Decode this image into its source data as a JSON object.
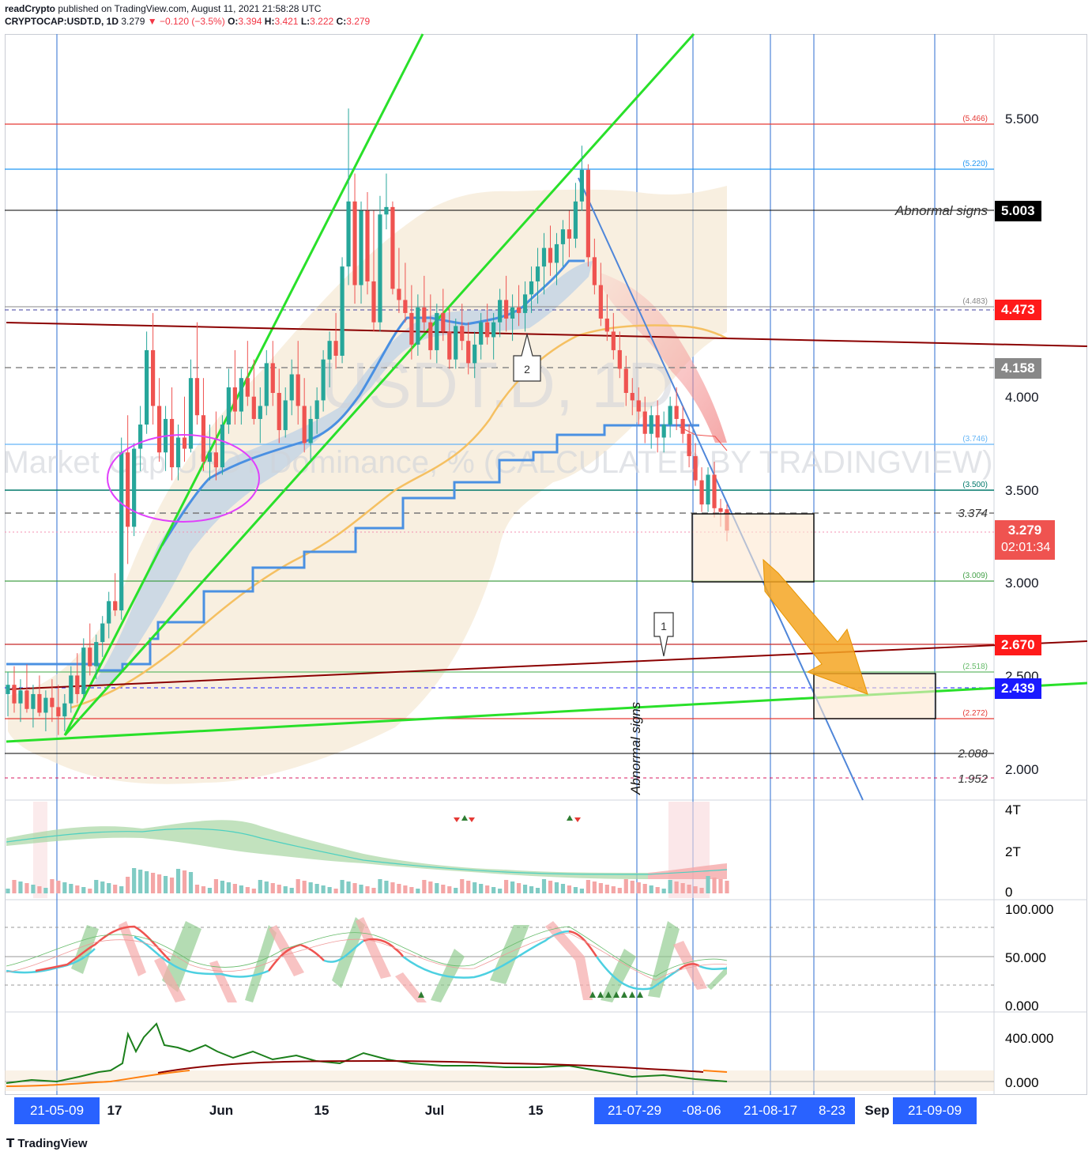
{
  "header": {
    "publisher": "readCrypto",
    "published_text": "published on TradingView.com, August 11, 2021 21:58:28 UTC",
    "symbol": "CRYPTOCAP:USDT.D, 1D",
    "last": "3.279",
    "change": "−0.120 (−3.5%)",
    "ohlc": {
      "o": "3.394",
      "h": "3.421",
      "l": "3.222",
      "c": "3.279"
    }
  },
  "watermark": {
    "symbol": "USDT.D, 1D",
    "description": "Market Cap USDT Dominance, % (CALCULATED BY TRADINGVIEW)"
  },
  "brand": "TradingView",
  "colors": {
    "up": "#26a69a",
    "down": "#ef5350",
    "trendline_green": "#29e02a",
    "trendline_darkred": "#8b0000",
    "trendline_blue": "#4f86d9",
    "band_fill": "#f5e6d0",
    "ma_orange": "#f5c062",
    "stepline_blue": "#4a90e2",
    "arrow_orange": "#f5a623"
  },
  "price_axis": {
    "ticks": [
      "5.500",
      "5.003",
      "4.000",
      "3.500",
      "3.000",
      "2.500",
      "2.000"
    ],
    "badges": [
      {
        "value": "5.003",
        "bg": "#000000",
        "fg": "#ffffff"
      },
      {
        "value": "4.473",
        "bg": "#ff1a1a",
        "fg": "#ffffff"
      },
      {
        "value": "4.158",
        "bg": "#888888",
        "fg": "#ffffff"
      },
      {
        "value": "3.279",
        "bg": "#ef5350",
        "fg": "#ffffff",
        "sub": "02:01:34"
      },
      {
        "value": "2.670",
        "bg": "#ff1a1a",
        "fg": "#ffffff"
      },
      {
        "value": "2.439",
        "bg": "#1a1aff",
        "fg": "#ffffff"
      }
    ],
    "levels": [
      {
        "label": "(5.466)",
        "color": "#e53935"
      },
      {
        "label": "(5.220)",
        "color": "#2196f3"
      },
      {
        "label": "(4.483)",
        "color": "#888888"
      },
      {
        "label": "(3.746)",
        "color": "#64b5f6"
      },
      {
        "label": "(3.500)",
        "color": "#00796b"
      },
      {
        "label": "(3.009)",
        "color": "#43a047"
      },
      {
        "label": "(2.518)",
        "color": "#66bb6a"
      },
      {
        "label": "(2.272)",
        "color": "#e53935"
      }
    ],
    "italic_levels": [
      "3.374",
      "2.088",
      "1.952"
    ]
  },
  "annotations": {
    "abnormal_horizontal": "Abnormal signs",
    "abnormal_vertical": "Abnormal signs",
    "callout_1": "1",
    "callout_2": "2"
  },
  "volume_axis": [
    "4T",
    "2T",
    "0"
  ],
  "osc_axis": [
    "100.000",
    "50.000",
    "0.000"
  ],
  "osc2_axis": [
    "400.000",
    "0.000"
  ],
  "time_axis": [
    {
      "label": "21-05-09",
      "highlight": true
    },
    {
      "label": "17",
      "highlight": false
    },
    {
      "label": "Jun",
      "highlight": false
    },
    {
      "label": "15",
      "highlight": false
    },
    {
      "label": "Jul",
      "highlight": false
    },
    {
      "label": "15",
      "highlight": false
    },
    {
      "label": "21-07-29",
      "highlight": true
    },
    {
      "label": "-08-06",
      "highlight": true
    },
    {
      "label": "21-08-17",
      "highlight": true
    },
    {
      "label": "8-23",
      "highlight": true
    },
    {
      "label": "Sep",
      "highlight": false
    },
    {
      "label": "21-09-09",
      "highlight": true
    }
  ],
  "chart_data": {
    "type": "candlestick",
    "title": "CRYPTOCAP:USDT.D, 1D",
    "ylabel": "",
    "ylim": [
      1.85,
      5.85
    ],
    "x_range": [
      "2021-05-01",
      "2021-09-15"
    ],
    "candles": [
      {
        "o": 2.4,
        "h": 2.52,
        "l": 2.28,
        "c": 2.45
      },
      {
        "o": 2.45,
        "h": 2.55,
        "l": 2.3,
        "c": 2.35
      },
      {
        "o": 2.35,
        "h": 2.48,
        "l": 2.25,
        "c": 2.42
      },
      {
        "o": 2.42,
        "h": 2.56,
        "l": 2.3,
        "c": 2.32
      },
      {
        "o": 2.32,
        "h": 2.45,
        "l": 2.22,
        "c": 2.4
      },
      {
        "o": 2.4,
        "h": 2.5,
        "l": 2.28,
        "c": 2.3
      },
      {
        "o": 2.3,
        "h": 2.42,
        "l": 2.2,
        "c": 2.38
      },
      {
        "o": 2.38,
        "h": 2.48,
        "l": 2.25,
        "c": 2.33
      },
      {
        "o": 2.33,
        "h": 2.45,
        "l": 2.18,
        "c": 2.28
      },
      {
        "o": 2.28,
        "h": 2.4,
        "l": 2.2,
        "c": 2.35
      },
      {
        "o": 2.35,
        "h": 2.55,
        "l": 2.3,
        "c": 2.5
      },
      {
        "o": 2.5,
        "h": 2.62,
        "l": 2.35,
        "c": 2.4
      },
      {
        "o": 2.4,
        "h": 2.7,
        "l": 2.38,
        "c": 2.65
      },
      {
        "o": 2.65,
        "h": 2.78,
        "l": 2.5,
        "c": 2.55
      },
      {
        "o": 2.55,
        "h": 2.72,
        "l": 2.48,
        "c": 2.68
      },
      {
        "o": 2.68,
        "h": 2.82,
        "l": 2.6,
        "c": 2.78
      },
      {
        "o": 2.78,
        "h": 2.95,
        "l": 2.7,
        "c": 2.9
      },
      {
        "o": 2.9,
        "h": 3.05,
        "l": 2.82,
        "c": 2.85
      },
      {
        "o": 2.85,
        "h": 3.78,
        "l": 2.8,
        "c": 3.7
      },
      {
        "o": 3.7,
        "h": 3.9,
        "l": 3.1,
        "c": 3.3
      },
      {
        "o": 3.3,
        "h": 3.75,
        "l": 3.25,
        "c": 3.72
      },
      {
        "o": 3.72,
        "h": 3.95,
        "l": 3.6,
        "c": 3.85
      },
      {
        "o": 3.85,
        "h": 4.35,
        "l": 3.8,
        "c": 4.25
      },
      {
        "o": 4.25,
        "h": 4.45,
        "l": 3.85,
        "c": 3.95
      },
      {
        "o": 3.95,
        "h": 4.1,
        "l": 3.65,
        "c": 3.7
      },
      {
        "o": 3.7,
        "h": 3.95,
        "l": 3.6,
        "c": 3.88
      },
      {
        "o": 3.88,
        "h": 4.05,
        "l": 3.55,
        "c": 3.62
      },
      {
        "o": 3.62,
        "h": 3.85,
        "l": 3.55,
        "c": 3.78
      },
      {
        "o": 3.78,
        "h": 4.0,
        "l": 3.65,
        "c": 3.72
      },
      {
        "o": 3.72,
        "h": 4.2,
        "l": 3.7,
        "c": 4.1
      },
      {
        "o": 4.1,
        "h": 4.4,
        "l": 3.85,
        "c": 3.9
      },
      {
        "o": 3.9,
        "h": 4.1,
        "l": 3.6,
        "c": 3.65
      },
      {
        "o": 3.65,
        "h": 3.85,
        "l": 3.55,
        "c": 3.7
      },
      {
        "o": 3.7,
        "h": 3.92,
        "l": 3.55,
        "c": 3.62
      },
      {
        "o": 3.62,
        "h": 3.9,
        "l": 3.58,
        "c": 3.85
      },
      {
        "o": 3.85,
        "h": 4.15,
        "l": 3.8,
        "c": 4.05
      },
      {
        "o": 4.05,
        "h": 4.25,
        "l": 3.85,
        "c": 3.92
      },
      {
        "o": 3.92,
        "h": 4.15,
        "l": 3.85,
        "c": 4.1
      },
      {
        "o": 4.1,
        "h": 4.3,
        "l": 3.95,
        "c": 4.0
      },
      {
        "o": 4.0,
        "h": 4.2,
        "l": 3.85,
        "c": 3.88
      },
      {
        "o": 3.88,
        "h": 4.05,
        "l": 3.75,
        "c": 3.95
      },
      {
        "o": 3.95,
        "h": 4.25,
        "l": 3.9,
        "c": 4.18
      },
      {
        "o": 4.18,
        "h": 4.3,
        "l": 3.95,
        "c": 4.02
      },
      {
        "o": 4.02,
        "h": 4.15,
        "l": 3.75,
        "c": 3.82
      },
      {
        "o": 3.82,
        "h": 4.05,
        "l": 3.78,
        "c": 3.98
      },
      {
        "o": 3.98,
        "h": 4.2,
        "l": 3.9,
        "c": 4.12
      },
      {
        "o": 4.12,
        "h": 4.3,
        "l": 3.85,
        "c": 3.95
      },
      {
        "o": 3.95,
        "h": 4.1,
        "l": 3.7,
        "c": 3.75
      },
      {
        "o": 3.75,
        "h": 3.95,
        "l": 3.65,
        "c": 3.88
      },
      {
        "o": 3.88,
        "h": 4.05,
        "l": 3.8,
        "c": 3.98
      },
      {
        "o": 3.98,
        "h": 4.25,
        "l": 3.92,
        "c": 4.2
      },
      {
        "o": 4.2,
        "h": 4.35,
        "l": 4.05,
        "c": 4.3
      },
      {
        "o": 4.3,
        "h": 4.45,
        "l": 4.15,
        "c": 4.22
      },
      {
        "o": 4.22,
        "h": 4.75,
        "l": 4.18,
        "c": 4.7
      },
      {
        "o": 4.7,
        "h": 5.55,
        "l": 4.6,
        "c": 5.05
      },
      {
        "o": 5.05,
        "h": 5.2,
        "l": 4.5,
        "c": 4.6
      },
      {
        "o": 4.6,
        "h": 5.05,
        "l": 4.5,
        "c": 5.0
      },
      {
        "o": 5.0,
        "h": 5.1,
        "l": 4.55,
        "c": 4.62
      },
      {
        "o": 4.62,
        "h": 5.0,
        "l": 4.35,
        "c": 4.4
      },
      {
        "o": 4.4,
        "h": 5.08,
        "l": 4.35,
        "c": 4.98
      },
      {
        "o": 4.98,
        "h": 5.2,
        "l": 4.9,
        "c": 5.02
      },
      {
        "o": 5.02,
        "h": 5.05,
        "l": 4.55,
        "c": 4.58
      },
      {
        "o": 4.58,
        "h": 4.8,
        "l": 4.45,
        "c": 4.52
      },
      {
        "o": 4.52,
        "h": 4.72,
        "l": 4.4,
        "c": 4.45
      },
      {
        "o": 4.45,
        "h": 4.6,
        "l": 4.2,
        "c": 4.28
      },
      {
        "o": 4.28,
        "h": 4.55,
        "l": 4.22,
        "c": 4.48
      },
      {
        "o": 4.48,
        "h": 4.65,
        "l": 4.35,
        "c": 4.4
      },
      {
        "o": 4.4,
        "h": 4.55,
        "l": 4.2,
        "c": 4.25
      },
      {
        "o": 4.25,
        "h": 4.5,
        "l": 4.18,
        "c": 4.45
      },
      {
        "o": 4.45,
        "h": 4.58,
        "l": 4.3,
        "c": 4.35
      },
      {
        "o": 4.35,
        "h": 4.48,
        "l": 4.15,
        "c": 4.2
      },
      {
        "o": 4.2,
        "h": 4.42,
        "l": 4.15,
        "c": 4.38
      },
      {
        "o": 4.38,
        "h": 4.5,
        "l": 4.25,
        "c": 4.3
      },
      {
        "o": 4.3,
        "h": 4.4,
        "l": 4.12,
        "c": 4.18
      },
      {
        "o": 4.18,
        "h": 4.35,
        "l": 4.1,
        "c": 4.28
      },
      {
        "o": 4.28,
        "h": 4.45,
        "l": 4.2,
        "c": 4.4
      },
      {
        "o": 4.4,
        "h": 4.5,
        "l": 4.28,
        "c": 4.32
      },
      {
        "o": 4.32,
        "h": 4.45,
        "l": 4.2,
        "c": 4.4
      },
      {
        "o": 4.4,
        "h": 4.58,
        "l": 4.32,
        "c": 4.52
      },
      {
        "o": 4.52,
        "h": 4.65,
        "l": 4.35,
        "c": 4.42
      },
      {
        "o": 4.42,
        "h": 4.55,
        "l": 4.3,
        "c": 4.48
      },
      {
        "o": 4.48,
        "h": 4.6,
        "l": 4.38,
        "c": 4.45
      },
      {
        "o": 4.45,
        "h": 4.62,
        "l": 4.35,
        "c": 4.55
      },
      {
        "o": 4.55,
        "h": 4.7,
        "l": 4.45,
        "c": 4.62
      },
      {
        "o": 4.62,
        "h": 4.8,
        "l": 4.5,
        "c": 4.7
      },
      {
        "o": 4.7,
        "h": 4.88,
        "l": 4.55,
        "c": 4.8
      },
      {
        "o": 4.8,
        "h": 4.92,
        "l": 4.65,
        "c": 4.72
      },
      {
        "o": 4.72,
        "h": 4.88,
        "l": 4.6,
        "c": 4.82
      },
      {
        "o": 4.82,
        "h": 4.95,
        "l": 4.7,
        "c": 4.9
      },
      {
        "o": 4.9,
        "h": 5.0,
        "l": 4.75,
        "c": 4.85
      },
      {
        "o": 4.85,
        "h": 5.15,
        "l": 4.8,
        "c": 5.05
      },
      {
        "o": 5.05,
        "h": 5.35,
        "l": 5.0,
        "c": 5.22
      },
      {
        "o": 5.22,
        "h": 5.25,
        "l": 4.7,
        "c": 4.75
      },
      {
        "o": 4.75,
        "h": 4.85,
        "l": 4.55,
        "c": 4.6
      },
      {
        "o": 4.6,
        "h": 4.72,
        "l": 4.38,
        "c": 4.42
      },
      {
        "o": 4.42,
        "h": 4.55,
        "l": 4.3,
        "c": 4.35
      },
      {
        "o": 4.35,
        "h": 4.45,
        "l": 4.2,
        "c": 4.25
      },
      {
        "o": 4.25,
        "h": 4.35,
        "l": 4.1,
        "c": 4.15
      },
      {
        "o": 4.15,
        "h": 4.22,
        "l": 3.95,
        "c": 4.02
      },
      {
        "o": 4.02,
        "h": 4.1,
        "l": 3.9,
        "c": 3.98
      },
      {
        "o": 3.98,
        "h": 4.05,
        "l": 3.85,
        "c": 3.92
      },
      {
        "o": 3.92,
        "h": 4.0,
        "l": 3.75,
        "c": 3.8
      },
      {
        "o": 3.8,
        "h": 3.95,
        "l": 3.72,
        "c": 3.9
      },
      {
        "o": 3.9,
        "h": 3.98,
        "l": 3.7,
        "c": 3.78
      },
      {
        "o": 3.78,
        "h": 3.92,
        "l": 3.7,
        "c": 3.85
      },
      {
        "o": 3.85,
        "h": 4.0,
        "l": 3.78,
        "c": 3.95
      },
      {
        "o": 3.95,
        "h": 4.05,
        "l": 3.82,
        "c": 3.88
      },
      {
        "o": 3.88,
        "h": 3.95,
        "l": 3.75,
        "c": 3.8
      },
      {
        "o": 3.8,
        "h": 3.85,
        "l": 3.62,
        "c": 3.68
      },
      {
        "o": 3.68,
        "h": 3.75,
        "l": 3.52,
        "c": 3.55
      },
      {
        "o": 3.55,
        "h": 3.62,
        "l": 3.38,
        "c": 3.42
      },
      {
        "o": 3.42,
        "h": 3.62,
        "l": 3.38,
        "c": 3.58
      },
      {
        "o": 3.58,
        "h": 3.65,
        "l": 3.35,
        "c": 3.4
      },
      {
        "o": 3.4,
        "h": 3.45,
        "l": 3.3,
        "c": 3.38
      },
      {
        "o": 3.394,
        "h": 3.421,
        "l": 3.222,
        "c": 3.279
      }
    ]
  }
}
